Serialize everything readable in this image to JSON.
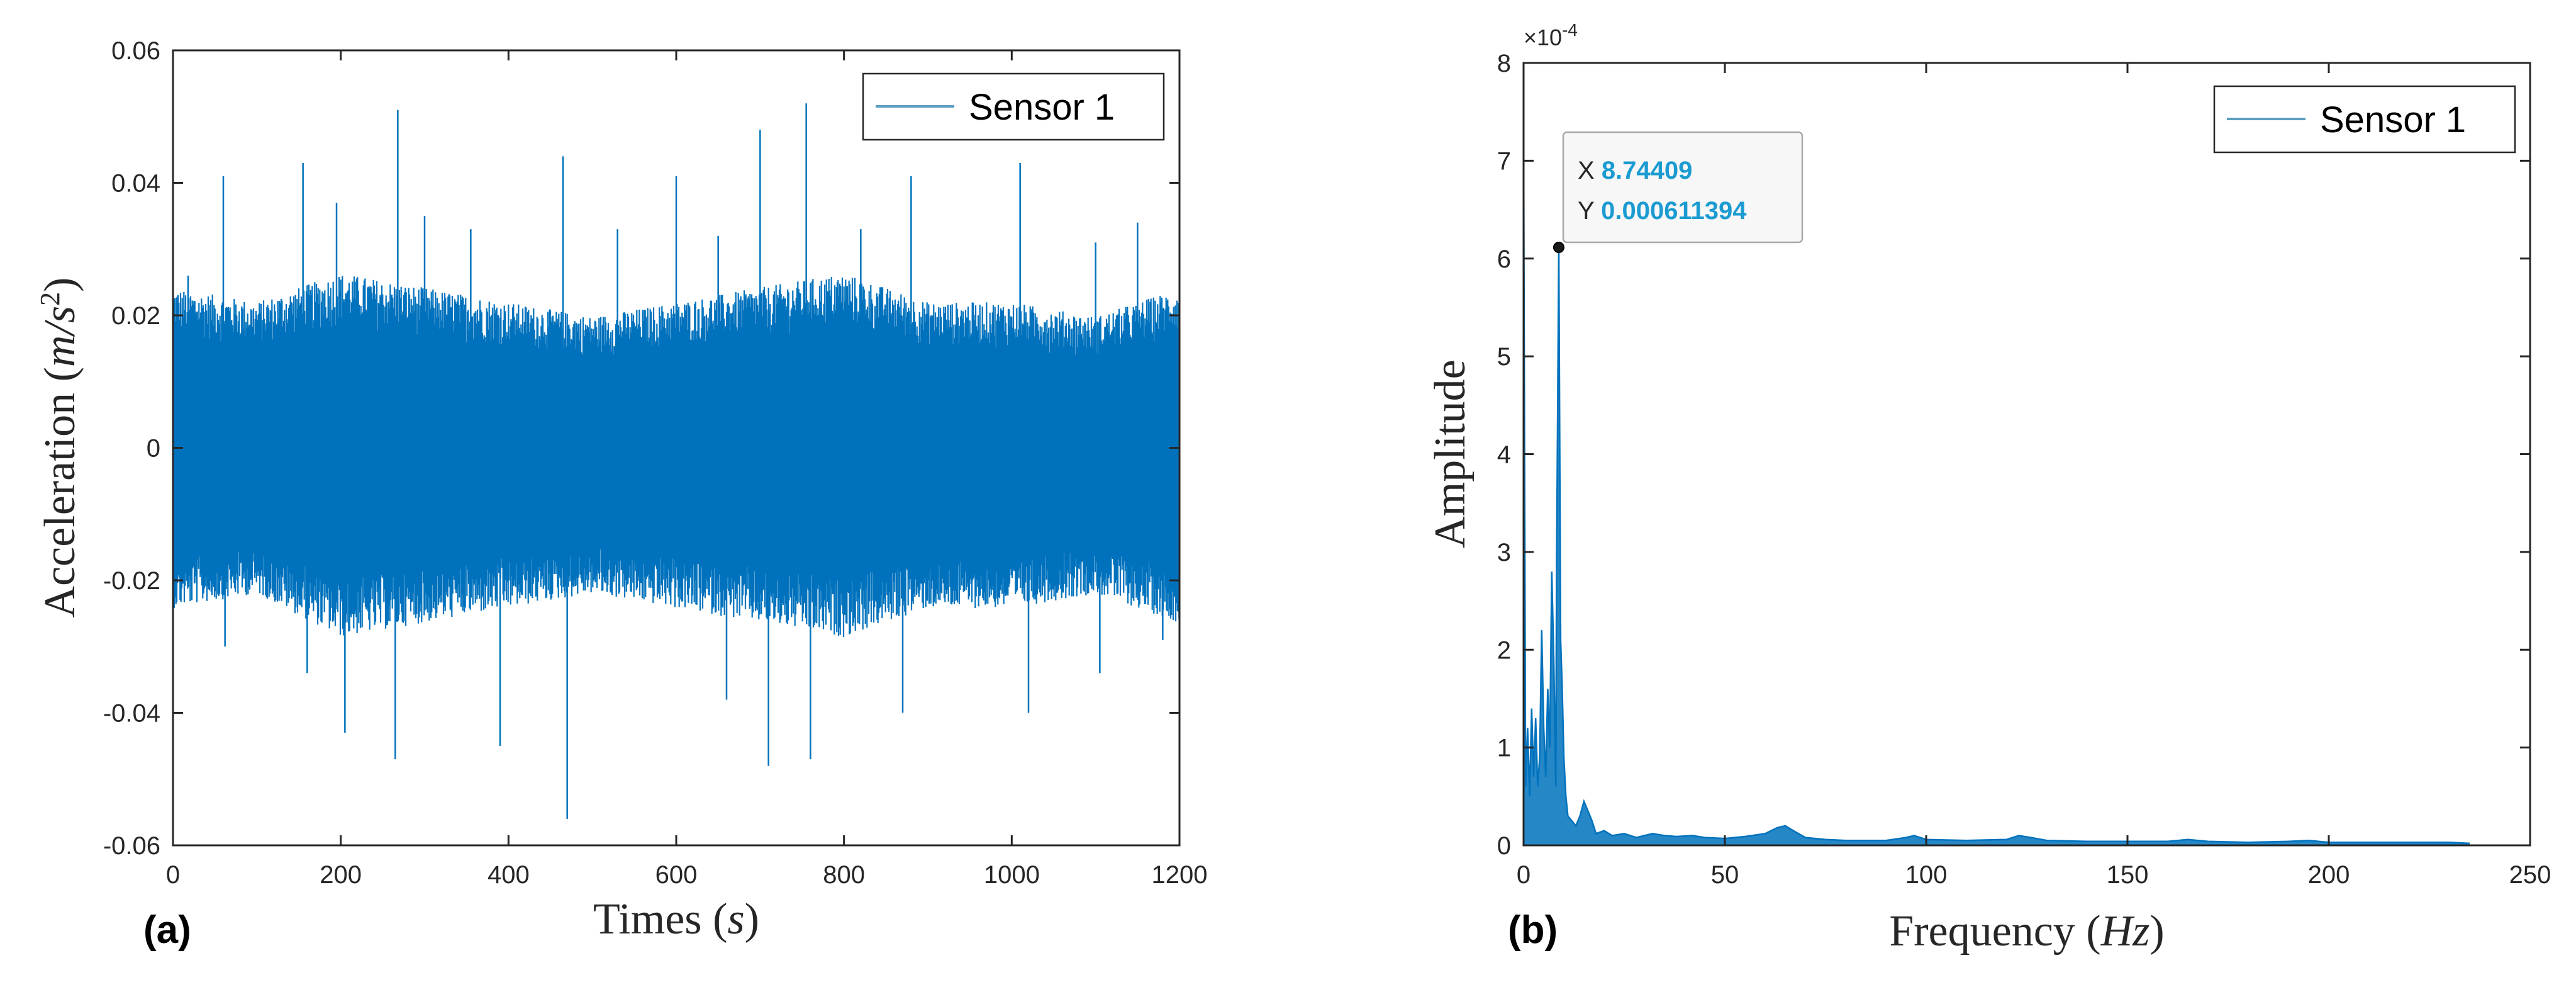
{
  "colors": {
    "signal": "#0072BD",
    "axis": "#262626",
    "datatip_value": "#1b9bd1"
  },
  "chart_data": [
    {
      "type": "line",
      "panel_label": "(a)",
      "xlabel": "Times",
      "xlabel_unit": "s",
      "ylabel": "Acceleration",
      "ylabel_unit": "m/s",
      "ylabel_unit_exp": "2",
      "xlim": [
        0,
        1200
      ],
      "ylim": [
        -0.06,
        0.06
      ],
      "xticks": [
        0,
        200,
        400,
        600,
        800,
        1000,
        1200
      ],
      "xtick_labels": [
        "0",
        "200",
        "400",
        "600",
        "800",
        "1000",
        "1200"
      ],
      "yticks": [
        -0.06,
        -0.04,
        -0.02,
        0,
        0.02,
        0.04,
        0.06
      ],
      "ytick_labels": [
        "-0.06",
        "-0.04",
        "-0.02",
        "0",
        "0.02",
        "0.04",
        "0.06"
      ],
      "grid": false,
      "legend": {
        "position": "top-right"
      },
      "series": [
        {
          "name": "Sensor 1",
          "description": "dense random vibration signal, envelope approx ±0.02, peaks listed",
          "envelope": {
            "x": [
              0,
              100,
              200,
              300,
              400,
              500,
              600,
              700,
              800,
              900,
              1000,
              1100,
              1200
            ],
            "max": [
              0.022,
              0.02,
              0.024,
              0.022,
              0.02,
              0.018,
              0.02,
              0.022,
              0.024,
              0.02,
              0.02,
              0.018,
              0.022
            ],
            "min": [
              -0.022,
              -0.02,
              -0.026,
              -0.024,
              -0.022,
              -0.02,
              -0.022,
              -0.024,
              -0.026,
              -0.022,
              -0.022,
              -0.02,
              -0.024
            ]
          },
          "peaks": [
            {
              "x": 18,
              "y": 0.026
            },
            {
              "x": 60,
              "y": 0.041
            },
            {
              "x": 62,
              "y": -0.03
            },
            {
              "x": 155,
              "y": 0.043
            },
            {
              "x": 160,
              "y": -0.034
            },
            {
              "x": 195,
              "y": 0.037
            },
            {
              "x": 205,
              "y": -0.043
            },
            {
              "x": 265,
              "y": -0.047
            },
            {
              "x": 268,
              "y": 0.051
            },
            {
              "x": 300,
              "y": 0.035
            },
            {
              "x": 355,
              "y": 0.033
            },
            {
              "x": 390,
              "y": -0.045
            },
            {
              "x": 465,
              "y": 0.044
            },
            {
              "x": 470,
              "y": -0.056
            },
            {
              "x": 530,
              "y": 0.033
            },
            {
              "x": 600,
              "y": 0.041
            },
            {
              "x": 650,
              "y": 0.032
            },
            {
              "x": 660,
              "y": -0.038
            },
            {
              "x": 700,
              "y": 0.048
            },
            {
              "x": 710,
              "y": -0.048
            },
            {
              "x": 755,
              "y": 0.052
            },
            {
              "x": 760,
              "y": -0.047
            },
            {
              "x": 820,
              "y": 0.033
            },
            {
              "x": 870,
              "y": -0.04
            },
            {
              "x": 880,
              "y": 0.041
            },
            {
              "x": 1010,
              "y": 0.043
            },
            {
              "x": 1020,
              "y": -0.04
            },
            {
              "x": 1100,
              "y": 0.031
            },
            {
              "x": 1105,
              "y": -0.034
            },
            {
              "x": 1150,
              "y": 0.034
            },
            {
              "x": 1180,
              "y": -0.029
            }
          ]
        }
      ]
    },
    {
      "type": "line",
      "panel_label": "(b)",
      "xlabel": "Frequency",
      "xlabel_unit": "Hz",
      "ylabel": "Amplitude",
      "xlim": [
        0,
        250
      ],
      "ylim": [
        0,
        8
      ],
      "y_exponent_label": "×10",
      "y_exponent": "-4",
      "xticks": [
        0,
        50,
        100,
        150,
        200,
        250
      ],
      "xtick_labels": [
        "0",
        "50",
        "100",
        "150",
        "200",
        "250"
      ],
      "yticks": [
        0,
        1,
        2,
        3,
        4,
        5,
        6,
        7,
        8
      ],
      "ytick_labels": [
        "0",
        "1",
        "2",
        "3",
        "4",
        "5",
        "6",
        "7",
        "8"
      ],
      "grid": false,
      "legend": {
        "position": "top-right"
      },
      "series": [
        {
          "name": "Sensor 1",
          "x": [
            0,
            0.5,
            1,
            1.5,
            2,
            2.5,
            3,
            3.5,
            4,
            4.5,
            5,
            5.5,
            6,
            6.5,
            7,
            7.5,
            8,
            8.2,
            8.74409,
            9.2,
            9.6,
            10,
            10.5,
            11,
            12,
            13,
            14,
            15,
            16,
            17,
            18,
            20,
            22,
            25,
            28,
            32,
            35,
            38,
            42,
            45,
            50,
            55,
            60,
            63,
            65,
            67,
            70,
            75,
            80,
            90,
            95,
            97,
            100,
            110,
            120,
            123,
            126,
            130,
            140,
            150,
            160,
            165,
            170,
            180,
            190,
            195,
            200,
            210,
            220,
            230,
            235
          ],
          "y": [
            7.2,
            0.6,
            1.2,
            0.5,
            1.4,
            0.7,
            1.3,
            0.6,
            0.9,
            2.2,
            1.2,
            0.7,
            1.6,
            1.0,
            2.8,
            1.9,
            0.6,
            2.9,
            6.11394,
            2.1,
            1.6,
            0.9,
            0.5,
            0.3,
            0.25,
            0.2,
            0.3,
            0.45,
            0.35,
            0.25,
            0.12,
            0.15,
            0.1,
            0.12,
            0.08,
            0.12,
            0.1,
            0.09,
            0.1,
            0.08,
            0.07,
            0.09,
            0.12,
            0.18,
            0.2,
            0.15,
            0.08,
            0.06,
            0.05,
            0.05,
            0.08,
            0.1,
            0.06,
            0.05,
            0.06,
            0.1,
            0.08,
            0.05,
            0.04,
            0.04,
            0.04,
            0.06,
            0.04,
            0.03,
            0.04,
            0.05,
            0.03,
            0.03,
            0.03,
            0.03,
            0.02
          ]
        }
      ],
      "datatip": {
        "x_label": "X",
        "x_value": "8.74409",
        "y_label": "Y",
        "y_value": "0.000611394",
        "x": 8.74409,
        "y": 6.11394
      }
    }
  ]
}
